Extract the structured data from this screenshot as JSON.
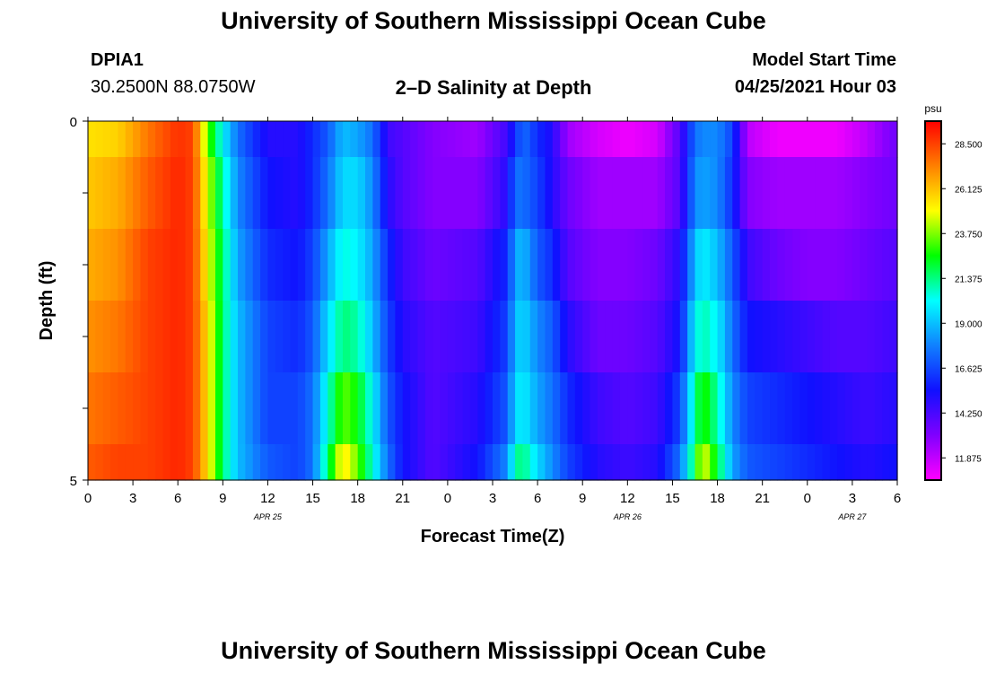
{
  "header": {
    "title": "University of Southern Mississippi Ocean Cube",
    "station_id": "DPIA1",
    "station_coords": "30.2500N  88.0750W",
    "chart_heading": "2–D Salinity at Depth",
    "model_start_label": "Model Start Time",
    "model_start_value": "04/25/2021 Hour 03"
  },
  "footer": {
    "title": "University of Southern Mississippi Ocean Cube"
  },
  "chart_data": {
    "type": "heatmap",
    "title": "2–D Salinity at Depth",
    "xlabel": "Forecast Time(Z)",
    "ylabel": "Depth (ft)",
    "xlim": [
      0,
      54
    ],
    "ylim": [
      0,
      5
    ],
    "x_ticks": [
      "0",
      "3",
      "6",
      "9",
      "12",
      "15",
      "18",
      "21",
      "0",
      "3",
      "6",
      "9",
      "12",
      "15",
      "18",
      "21",
      "0",
      "3",
      "6"
    ],
    "y_ticks": [
      "0",
      "5"
    ],
    "date_labels": [
      {
        "text": "APR  25",
        "hour": 12
      },
      {
        "text": "APR  26",
        "hour": 36
      },
      {
        "text": "APR  27",
        "hour": 51
      }
    ],
    "colorbar": {
      "unit": "psu",
      "min": 10.7,
      "max": 29.7,
      "ticks": [
        "28.500",
        "26.125",
        "23.750",
        "21.375",
        "19.000",
        "16.625",
        "14.250",
        "11.875"
      ],
      "colors": [
        "#ff00ff",
        "#8000ff",
        "#1010ff",
        "#1080ff",
        "#00ffff",
        "#00ff00",
        "#ffff00",
        "#ff8000",
        "#ff0000"
      ]
    },
    "row_depths_ft": [
      0,
      1,
      2,
      3,
      4,
      5
    ],
    "key_hours": [
      0,
      2,
      4,
      6,
      7,
      8,
      9,
      10,
      12,
      14,
      15,
      16,
      17,
      18,
      19,
      20,
      21,
      23,
      26,
      28,
      28.5,
      29,
      30,
      31,
      32,
      34,
      36,
      38,
      39.5,
      40.5,
      41,
      42,
      43,
      44,
      46,
      48,
      50,
      52,
      54
    ],
    "salinity_rows": [
      [
        25.5,
        25.8,
        27.5,
        28.8,
        28.5,
        23.5,
        20.0,
        17.5,
        15.0,
        15.0,
        16.0,
        17.0,
        19.0,
        18.5,
        17.5,
        14.5,
        14.0,
        13.0,
        12.5,
        14.5,
        16.0,
        17.5,
        16.0,
        15.0,
        12.5,
        11.5,
        11.0,
        11.5,
        14.0,
        17.5,
        18.0,
        18.0,
        16.5,
        12.0,
        11.0,
        11.0,
        11.0,
        12.0,
        13.5
      ],
      [
        26.0,
        26.5,
        28.0,
        29.0,
        28.5,
        24.5,
        21.0,
        18.0,
        15.5,
        15.0,
        16.0,
        17.5,
        19.5,
        19.5,
        18.0,
        15.0,
        14.0,
        13.0,
        13.0,
        15.0,
        17.5,
        17.5,
        16.5,
        15.0,
        13.5,
        12.5,
        12.5,
        12.5,
        14.0,
        18.0,
        18.5,
        18.0,
        16.0,
        13.0,
        12.5,
        12.5,
        12.5,
        13.0,
        13.5
      ],
      [
        26.5,
        27.0,
        28.5,
        29.0,
        28.5,
        25.0,
        21.5,
        18.5,
        16.0,
        15.5,
        16.5,
        18.5,
        20.5,
        20.0,
        18.5,
        16.0,
        14.5,
        13.5,
        14.0,
        16.0,
        18.5,
        19.0,
        17.0,
        16.0,
        14.0,
        13.0,
        13.0,
        13.5,
        15.0,
        19.0,
        20.0,
        19.0,
        17.0,
        14.5,
        13.5,
        13.0,
        13.0,
        13.5,
        14.0
      ],
      [
        27.0,
        27.5,
        28.5,
        29.0,
        28.5,
        25.5,
        21.5,
        19.0,
        16.5,
        16.0,
        17.0,
        19.5,
        21.5,
        21.0,
        19.0,
        16.5,
        15.0,
        14.0,
        14.5,
        16.5,
        19.0,
        19.5,
        18.0,
        17.0,
        15.0,
        13.5,
        13.5,
        14.0,
        15.5,
        20.0,
        21.0,
        20.0,
        17.5,
        15.5,
        15.0,
        14.5,
        14.0,
        14.0,
        14.5
      ],
      [
        27.5,
        28.0,
        28.5,
        29.0,
        28.5,
        25.5,
        21.5,
        19.0,
        16.5,
        16.5,
        17.5,
        20.5,
        23.5,
        22.5,
        20.0,
        17.0,
        15.5,
        14.0,
        15.0,
        17.0,
        19.5,
        20.0,
        18.5,
        17.5,
        16.0,
        14.5,
        14.0,
        14.5,
        16.5,
        21.0,
        23.0,
        21.0,
        18.0,
        16.5,
        16.0,
        15.5,
        15.0,
        14.5,
        15.0
      ],
      [
        28.0,
        28.5,
        28.5,
        29.0,
        28.5,
        25.5,
        21.5,
        19.0,
        17.0,
        16.5,
        17.5,
        21.5,
        25.5,
        23.5,
        20.5,
        17.5,
        15.5,
        14.0,
        15.5,
        18.0,
        21.0,
        21.5,
        19.5,
        18.0,
        16.5,
        15.0,
        14.5,
        15.0,
        17.5,
        22.0,
        25.0,
        22.0,
        18.5,
        17.0,
        16.5,
        16.0,
        15.5,
        15.0,
        15.5
      ]
    ]
  }
}
